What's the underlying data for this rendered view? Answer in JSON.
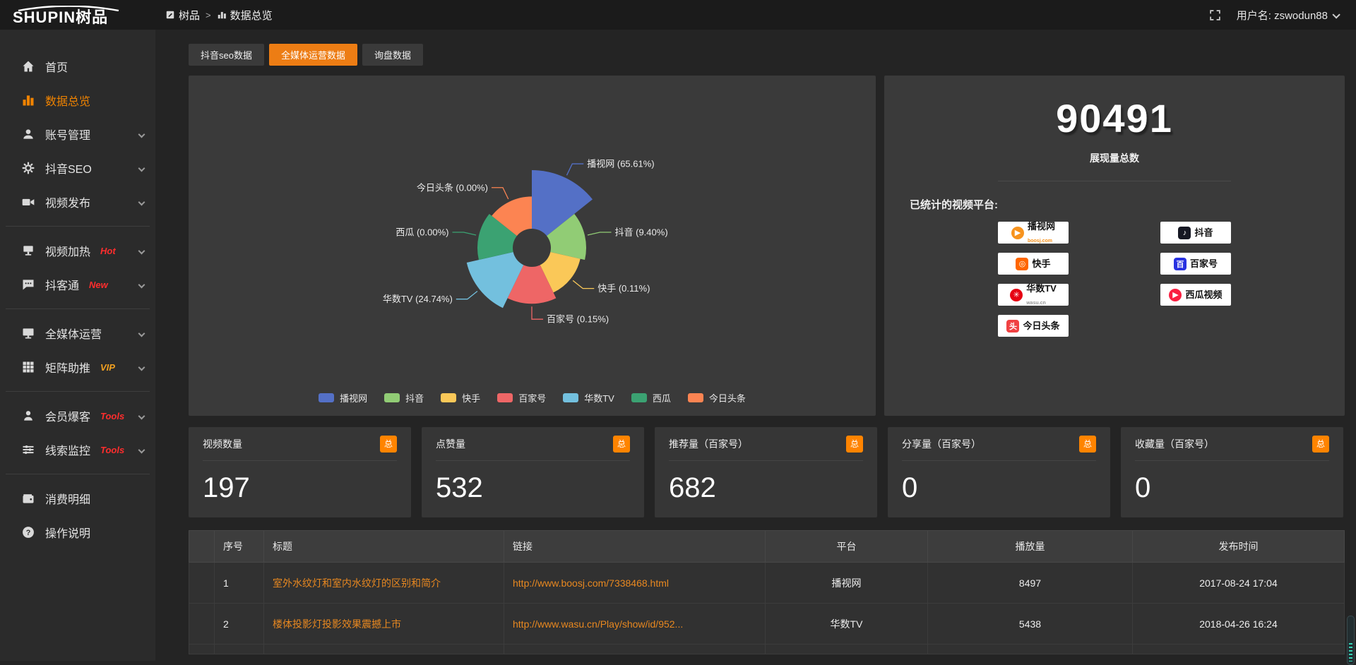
{
  "header": {
    "logo_en": "SHUPIN",
    "logo_cn": "树品",
    "breadcrumb_root": "树品",
    "breadcrumb_sep": ">",
    "breadcrumb_current": "数据总览",
    "user_label": "用户名: zswodun88"
  },
  "sidebar": {
    "items": [
      {
        "label": "首页"
      },
      {
        "label": "数据总览"
      },
      {
        "label": "账号管理"
      },
      {
        "label": "抖音SEO"
      },
      {
        "label": "视频发布"
      },
      {
        "label": "视频加热",
        "tag": "Hot"
      },
      {
        "label": "抖客通",
        "tag": "New"
      },
      {
        "label": "全媒体运营"
      },
      {
        "label": "矩阵助推",
        "tag": "VIP"
      },
      {
        "label": "会员爆客",
        "tag": "Tools"
      },
      {
        "label": "线索监控",
        "tag": "Tools"
      },
      {
        "label": "消费明细"
      },
      {
        "label": "操作说明"
      }
    ]
  },
  "tabs": {
    "items": [
      {
        "label": "抖音seo数据"
      },
      {
        "label": "全媒体运营数据"
      },
      {
        "label": "询盘数据"
      }
    ]
  },
  "chart_data": {
    "type": "pie",
    "subtype": "nightingale-rose",
    "legend_position": "bottom",
    "label_format": "{name} ({percent}%)",
    "items": [
      {
        "name": "播视网",
        "percent": 65.61,
        "color": "#5470c6",
        "radius": 1.0
      },
      {
        "name": "抖音",
        "percent": 9.4,
        "color": "#91cc75",
        "radius": 0.7
      },
      {
        "name": "快手",
        "percent": 0.11,
        "color": "#fac858",
        "radius": 0.64
      },
      {
        "name": "百家号",
        "percent": 0.15,
        "color": "#ee6666",
        "radius": 0.72
      },
      {
        "name": "华数TV",
        "percent": 24.74,
        "color": "#73c0de",
        "radius": 0.86
      },
      {
        "name": "西瓜",
        "percent": 0.0,
        "color": "#3ba272",
        "radius": 0.7
      },
      {
        "name": "今日头条",
        "percent": 0.0,
        "color": "#fc8452",
        "radius": 0.66
      }
    ]
  },
  "summary": {
    "value": "90491",
    "label": "展现量总数",
    "platforms_title": "已统计的视频平台:",
    "platforms": [
      {
        "name": "播视网",
        "sub": "boosj.com",
        "logo_color": "#f7931e",
        "glyph": "▶"
      },
      {
        "name": "抖音",
        "sub": "",
        "logo_color": "#161823",
        "glyph": "♪"
      },
      {
        "name": "快手",
        "sub": "",
        "logo_color": "#ff6600",
        "glyph": "◎"
      },
      {
        "name": "百家号",
        "sub": "",
        "logo_color": "#2932e1",
        "glyph": "百"
      },
      {
        "name": "华数TV",
        "sub": "wasu.cn",
        "logo_color": "#e60012",
        "glyph": "✳"
      },
      {
        "name": "西瓜视频",
        "sub": "",
        "logo_color": "#fa1f41",
        "glyph": "▶"
      },
      {
        "name": "今日头条",
        "sub": "",
        "logo_color": "#f04142",
        "glyph": "头"
      }
    ]
  },
  "stat_cards": [
    {
      "title": "视频数量",
      "badge": "总",
      "value": "197"
    },
    {
      "title": "点赞量",
      "badge": "总",
      "value": "532"
    },
    {
      "title": "推荐量（百家号）",
      "badge": "总",
      "value": "682"
    },
    {
      "title": "分享量（百家号）",
      "badge": "总",
      "value": "0"
    },
    {
      "title": "收藏量（百家号）",
      "badge": "总",
      "value": "0"
    }
  ],
  "table": {
    "headers": [
      "序号",
      "标题",
      "链接",
      "平台",
      "播放量",
      "发布时间"
    ],
    "rows": [
      {
        "index": "1",
        "title": "室外水纹灯和室内水纹灯的区别和简介",
        "link": "http://www.boosj.com/7338468.html",
        "platform": "播视网",
        "plays": "8497",
        "published": "2017-08-24 17:04"
      },
      {
        "index": "2",
        "title": "楼体投影灯投影效果震撼上市",
        "link": "http://www.wasu.cn/Play/show/id/952...",
        "platform": "华数TV",
        "plays": "5438",
        "published": "2018-04-26 16:24"
      }
    ]
  },
  "colors": {
    "accent": "#ed7d14",
    "badge": "#ff8400",
    "link": "#e88820",
    "hot_tag": "#ff2d2d",
    "vip_tag": "#f0a020"
  }
}
